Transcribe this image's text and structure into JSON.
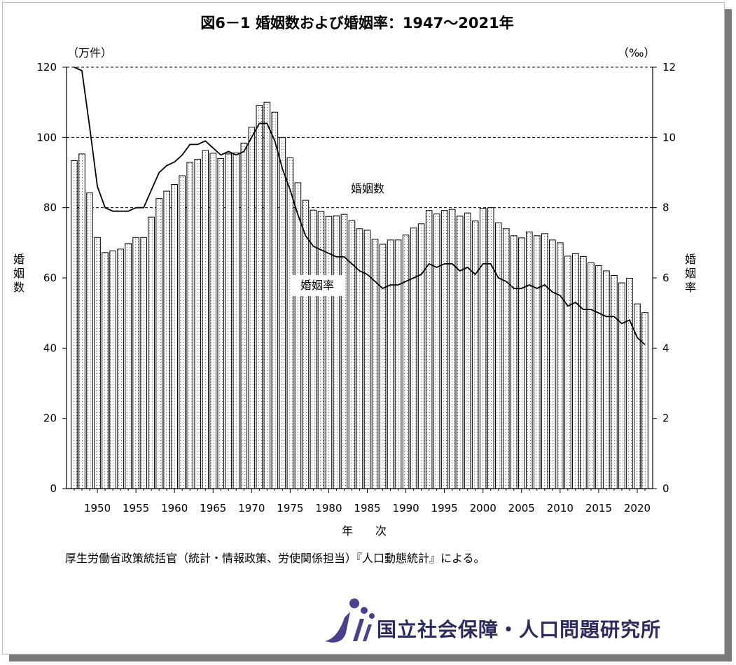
{
  "title": "図6－1 婚姻数および婚姻率：1947～2021年",
  "source": "厚生労働省政策統括官（統計・情報政策、労使関係担当）『人口動態統計』による。",
  "logo_text": "国立社会保障・人口問題研究所",
  "chart_data": {
    "type": "bar",
    "title": "図6－1 婚姻数および婚姻率：1947～2021年",
    "xlabel": "年　　次",
    "ylabel_left": "婚姻数",
    "ylabel_right": "婚姻率",
    "unit_left": "（万件）",
    "unit_right": "（‰）",
    "ylim_left": [
      0,
      120
    ],
    "ylim_right": [
      0,
      12
    ],
    "yticks_left": [
      "0",
      "20",
      "40",
      "60",
      "80",
      "100",
      "120"
    ],
    "yticks_right": [
      "0",
      "2",
      "4",
      "6",
      "8",
      "10",
      "12"
    ],
    "xtick_labels": [
      "1950",
      "1955",
      "1960",
      "1965",
      "1970",
      "1975",
      "1980",
      "1985",
      "1990",
      "1995",
      "2000",
      "2005",
      "2010",
      "2015",
      "2020"
    ],
    "years": [
      1947,
      1948,
      1949,
      1950,
      1951,
      1952,
      1953,
      1954,
      1955,
      1956,
      1957,
      1958,
      1959,
      1960,
      1961,
      1962,
      1963,
      1964,
      1965,
      1966,
      1967,
      1968,
      1969,
      1970,
      1971,
      1972,
      1973,
      1974,
      1975,
      1976,
      1977,
      1978,
      1979,
      1980,
      1981,
      1982,
      1983,
      1984,
      1985,
      1986,
      1987,
      1988,
      1989,
      1990,
      1991,
      1992,
      1993,
      1994,
      1995,
      1996,
      1997,
      1998,
      1999,
      2000,
      2001,
      2002,
      2003,
      2004,
      2005,
      2006,
      2007,
      2008,
      2009,
      2010,
      2011,
      2012,
      2013,
      2014,
      2015,
      2016,
      2017,
      2018,
      2019,
      2020,
      2021
    ],
    "series": [
      {
        "name": "婚姻数",
        "kind": "bar",
        "axis": "left",
        "values": [
          93.4,
          95.3,
          84.2,
          71.5,
          67.2,
          67.7,
          68.2,
          69.8,
          71.5,
          71.5,
          77.3,
          82.6,
          84.7,
          86.6,
          89.1,
          92.9,
          93.8,
          96.3,
          95.5,
          94.0,
          95.3,
          95.6,
          98.4,
          102.9,
          109.1,
          110.0,
          107.2,
          100.0,
          94.2,
          87.1,
          82.1,
          79.3,
          78.9,
          77.5,
          77.7,
          78.1,
          76.3,
          74.0,
          73.6,
          71.0,
          69.6,
          70.8,
          70.8,
          72.2,
          74.2,
          75.4,
          79.2,
          78.2,
          79.2,
          79.5,
          77.6,
          78.5,
          76.2,
          79.8,
          80.0,
          75.7,
          74.0,
          72.0,
          71.4,
          73.1,
          72.0,
          72.6,
          70.8,
          70.0,
          66.2,
          66.9,
          66.1,
          64.3,
          63.5,
          62.0,
          60.7,
          58.6,
          59.9,
          52.6,
          50.1
        ]
      },
      {
        "name": "婚姻率",
        "kind": "line",
        "axis": "right",
        "values": [
          12.0,
          11.9,
          10.3,
          8.6,
          8.0,
          7.9,
          7.9,
          7.9,
          8.0,
          8.0,
          8.5,
          9.0,
          9.2,
          9.3,
          9.5,
          9.8,
          9.8,
          9.9,
          9.7,
          9.5,
          9.6,
          9.5,
          9.6,
          10.0,
          10.4,
          10.4,
          9.9,
          9.1,
          8.5,
          7.8,
          7.2,
          6.9,
          6.8,
          6.7,
          6.6,
          6.6,
          6.4,
          6.2,
          6.1,
          5.9,
          5.7,
          5.8,
          5.8,
          5.9,
          6.0,
          6.1,
          6.4,
          6.3,
          6.4,
          6.4,
          6.2,
          6.3,
          6.1,
          6.4,
          6.4,
          6.0,
          5.9,
          5.7,
          5.7,
          5.8,
          5.7,
          5.8,
          5.6,
          5.5,
          5.2,
          5.3,
          5.1,
          5.1,
          5.0,
          4.9,
          4.9,
          4.7,
          4.8,
          4.3,
          4.1
        ]
      }
    ],
    "annotations": [
      "婚姻数",
      "婚姻率"
    ]
  }
}
